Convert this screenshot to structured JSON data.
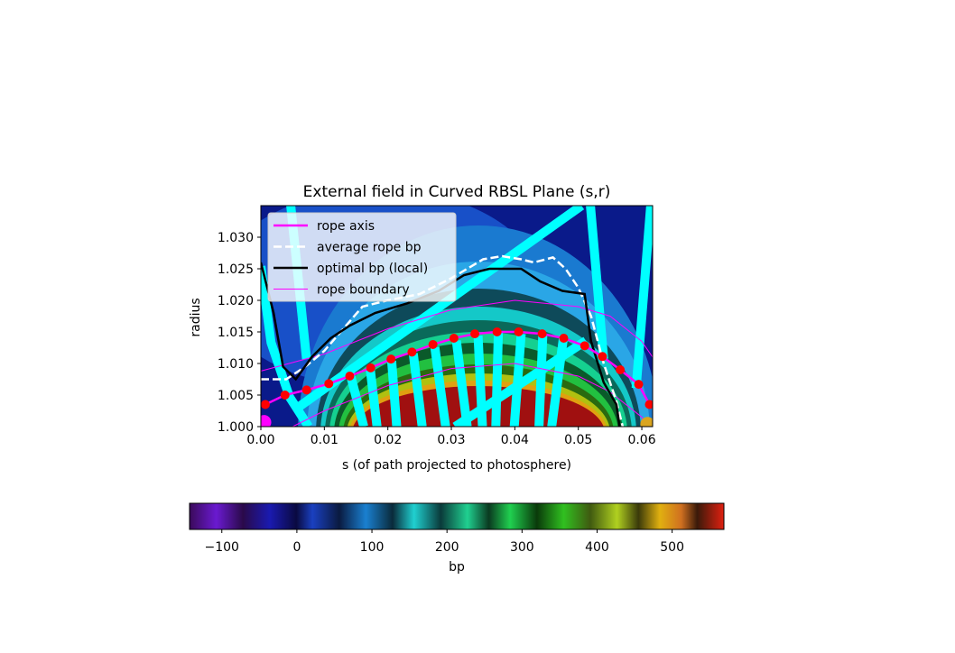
{
  "chart_data": {
    "type": "line",
    "title": "External field in Curved RBSL Plane (s,r)",
    "xlabel": "s (of path projected to photosphere)",
    "ylabel": "radius",
    "xlim": [
      0,
      0.0617
    ],
    "ylim": [
      1.0,
      1.035
    ],
    "xticks": [
      {
        "value": 0,
        "label": "0.00"
      },
      {
        "value": 0.01,
        "label": "0.01"
      },
      {
        "value": 0.02,
        "label": "0.02"
      },
      {
        "value": 0.03,
        "label": "0.03"
      },
      {
        "value": 0.04,
        "label": "0.04"
      },
      {
        "value": 0.05,
        "label": "0.05"
      },
      {
        "value": 0.06,
        "label": "0.06"
      }
    ],
    "yticks": [
      {
        "value": 1.0,
        "label": "1.000"
      },
      {
        "value": 1.005,
        "label": "1.005"
      },
      {
        "value": 1.01,
        "label": "1.010"
      },
      {
        "value": 1.015,
        "label": "1.015"
      },
      {
        "value": 1.02,
        "label": "1.020"
      },
      {
        "value": 1.025,
        "label": "1.025"
      },
      {
        "value": 1.03,
        "label": "1.030"
      }
    ],
    "legend": "upper left",
    "field_line_color": "#00ffff",
    "field_lines": [
      {
        "x": [
          0,
          0.0016,
          0.0045,
          0.0075
        ],
        "values": [
          1.0254,
          1.0133,
          1.0047,
          1.0
        ]
      },
      {
        "x": [
          0.0047,
          0.0072
        ],
        "values": [
          1.035,
          1.0107
        ]
      },
      {
        "x": [
          0.0058,
          0.0505
        ],
        "values": [
          1.003,
          1.035
        ]
      },
      {
        "x": [
          0.0306,
          0.0512
        ],
        "values": [
          1.0,
          1.0136
        ]
      },
      {
        "x": [
          0.014,
          0.0162
        ],
        "values": [
          1.0086,
          1.0
        ]
      },
      {
        "x": [
          0.0172,
          0.0183
        ],
        "values": [
          1.0093,
          1.0
        ]
      },
      {
        "x": [
          0.0206,
          0.0214
        ],
        "values": [
          1.0104,
          1.0
        ]
      },
      {
        "x": [
          0.024,
          0.0254
        ],
        "values": [
          1.0116,
          1.0
        ]
      },
      {
        "x": [
          0.0274,
          0.0291
        ],
        "values": [
          1.0126,
          1.0
        ]
      },
      {
        "x": [
          0.0308,
          0.0325
        ],
        "values": [
          1.0136,
          1.0
        ]
      },
      {
        "x": [
          0.0342,
          0.0349
        ],
        "values": [
          1.0144,
          1.0
        ]
      },
      {
        "x": [
          0.0374,
          0.037
        ],
        "values": [
          1.0149,
          1.0
        ]
      },
      {
        "x": [
          0.041,
          0.0399
        ],
        "values": [
          1.0147,
          1.0
        ]
      },
      {
        "x": [
          0.0444,
          0.0438
        ],
        "values": [
          1.0144,
          1.0
        ]
      },
      {
        "x": [
          0.0477,
          0.0458
        ],
        "values": [
          1.0144,
          1.0
        ]
      },
      {
        "x": [
          0.0519,
          0.054
        ],
        "values": [
          1.035,
          1.0107
        ]
      },
      {
        "x": [
          0.0614,
          0.0591
        ],
        "values": [
          1.035,
          1.0061
        ]
      }
    ],
    "series": [
      {
        "name": "rope axis",
        "color": "#ff00ff",
        "style": "solid",
        "width": 2.5,
        "marker_color": "#ff0000",
        "x": [
          0.0007,
          0.0038,
          0.0072,
          0.0107,
          0.014,
          0.0173,
          0.0205,
          0.0238,
          0.0271,
          0.0304,
          0.0337,
          0.0372,
          0.0406,
          0.0443,
          0.0477,
          0.051,
          0.0538,
          0.0566,
          0.0595,
          0.0612
        ],
        "values": [
          1.0035,
          1.005,
          1.0058,
          1.0068,
          1.008,
          1.0093,
          1.0107,
          1.0118,
          1.013,
          1.014,
          1.0147,
          1.015,
          1.015,
          1.0147,
          1.014,
          1.0128,
          1.0111,
          1.009,
          1.0067,
          1.0035
        ]
      },
      {
        "name": "average rope bp",
        "color": "#ffffff",
        "style": "dashed",
        "width": 2.5,
        "x": [
          0,
          0.004,
          0.007,
          0.01,
          0.013,
          0.016,
          0.02,
          0.025,
          0.03,
          0.035,
          0.038,
          0.041,
          0.043,
          0.046,
          0.048,
          0.05,
          0.052,
          0.054,
          0.056,
          0.057
        ],
        "values": [
          1.0075,
          1.0075,
          1.0095,
          1.012,
          1.0155,
          1.019,
          1.02,
          1.021,
          1.0235,
          1.0265,
          1.027,
          1.0265,
          1.026,
          1.0268,
          1.025,
          1.022,
          1.0175,
          1.01,
          1.004,
          1.0
        ]
      },
      {
        "name": "optimal bp (local)",
        "color": "#000000",
        "style": "solid",
        "width": 2.5,
        "x": [
          0,
          0.002,
          0.0035,
          0.0055,
          0.008,
          0.011,
          0.014,
          0.018,
          0.023,
          0.028,
          0.032,
          0.036,
          0.041,
          0.044,
          0.0475,
          0.051,
          0.052,
          0.054,
          0.056,
          0.0565
        ],
        "values": [
          1.026,
          1.018,
          1.0095,
          1.0075,
          1.011,
          1.014,
          1.016,
          1.018,
          1.0195,
          1.0215,
          1.024,
          1.025,
          1.025,
          1.023,
          1.0215,
          1.021,
          1.0135,
          1.007,
          1.0035,
          1.0
        ]
      },
      {
        "name": "rope boundary",
        "color": "#ff00ff",
        "style": "solid",
        "width": 1,
        "x": [
          0,
          0.01,
          0.02,
          0.03,
          0.04,
          0.05,
          0.055,
          0.06,
          0.0617,
          0,
          0.005,
          0.01,
          0.02,
          0.03,
          0.04,
          0.05,
          0.055,
          0.06,
          0.061
        ],
        "values": [
          1.0088,
          1.0115,
          1.0155,
          1.0185,
          1.02,
          1.019,
          1.0175,
          1.0135,
          1.011,
          null,
          1.0,
          1.0025,
          1.0065,
          1.0092,
          1.01,
          1.008,
          1.0055,
          1.0015,
          1.0
        ]
      }
    ],
    "footpoints": {
      "x": [
        0.0005,
        0.0609
      ],
      "values": [
        1.0007,
        1.0004
      ],
      "colors": [
        "#ff00ff",
        "#daa520"
      ]
    },
    "colorbar": {
      "label": "bp",
      "lim": [
        -143,
        569
      ],
      "ticks": [
        {
          "value": -100,
          "label": "−100"
        },
        0,
        100,
        200,
        300,
        400,
        500
      ]
    }
  }
}
